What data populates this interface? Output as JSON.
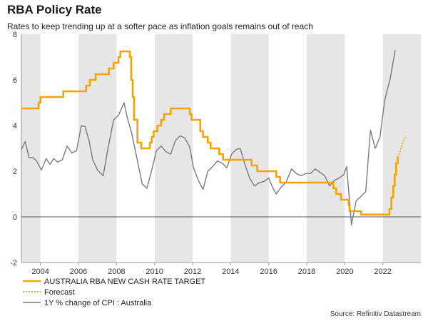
{
  "chart_data": {
    "type": "line",
    "title": "RBA Policy Rate",
    "subtitle": "Rates to keep trending up at a softer pace as inflation goals remains out of reach",
    "xlabel": "",
    "ylabel": "",
    "xlim": [
      2003.0,
      2024.0
    ],
    "ylim": [
      -2,
      8
    ],
    "x_ticks": [
      2004,
      2006,
      2008,
      2010,
      2012,
      2014,
      2016,
      2018,
      2020,
      2022
    ],
    "y_ticks": [
      -2,
      0,
      2,
      4,
      6,
      8
    ],
    "shaded_bands": [
      [
        2003.0,
        2004.0
      ],
      [
        2006.0,
        2008.0
      ],
      [
        2010.0,
        2012.0
      ],
      [
        2014.0,
        2016.0
      ],
      [
        2018.0,
        2020.0
      ],
      [
        2022.0,
        2024.0
      ]
    ],
    "legend_position": "bottom-left",
    "source": "Source: Refinitiv Datastream",
    "series": [
      {
        "name": "AUSTRALIA RBA NEW CASH RATE TARGET",
        "color": "#f5a300",
        "style": "step",
        "points": [
          [
            2003.0,
            4.75
          ],
          [
            2003.9,
            4.75
          ],
          [
            2003.9,
            5.0
          ],
          [
            2004.0,
            5.0
          ],
          [
            2004.0,
            5.25
          ],
          [
            2005.2,
            5.25
          ],
          [
            2005.2,
            5.5
          ],
          [
            2006.4,
            5.5
          ],
          [
            2006.4,
            5.75
          ],
          [
            2006.6,
            5.75
          ],
          [
            2006.6,
            6.0
          ],
          [
            2006.9,
            6.0
          ],
          [
            2006.9,
            6.25
          ],
          [
            2007.6,
            6.25
          ],
          [
            2007.6,
            6.5
          ],
          [
            2007.85,
            6.5
          ],
          [
            2007.85,
            6.75
          ],
          [
            2008.1,
            6.75
          ],
          [
            2008.1,
            7.0
          ],
          [
            2008.2,
            7.0
          ],
          [
            2008.2,
            7.25
          ],
          [
            2008.7,
            7.25
          ],
          [
            2008.7,
            7.0
          ],
          [
            2008.77,
            7.0
          ],
          [
            2008.77,
            6.0
          ],
          [
            2008.85,
            6.0
          ],
          [
            2008.85,
            5.25
          ],
          [
            2008.92,
            5.25
          ],
          [
            2008.92,
            4.25
          ],
          [
            2009.1,
            4.25
          ],
          [
            2009.1,
            3.25
          ],
          [
            2009.3,
            3.25
          ],
          [
            2009.3,
            3.0
          ],
          [
            2009.75,
            3.0
          ],
          [
            2009.75,
            3.25
          ],
          [
            2009.85,
            3.25
          ],
          [
            2009.85,
            3.5
          ],
          [
            2009.95,
            3.5
          ],
          [
            2009.95,
            3.75
          ],
          [
            2010.15,
            3.75
          ],
          [
            2010.15,
            4.0
          ],
          [
            2010.35,
            4.0
          ],
          [
            2010.35,
            4.25
          ],
          [
            2010.5,
            4.25
          ],
          [
            2010.5,
            4.5
          ],
          [
            2010.85,
            4.5
          ],
          [
            2010.85,
            4.75
          ],
          [
            2011.85,
            4.75
          ],
          [
            2011.85,
            4.5
          ],
          [
            2011.95,
            4.5
          ],
          [
            2011.95,
            4.25
          ],
          [
            2012.4,
            4.25
          ],
          [
            2012.4,
            3.75
          ],
          [
            2012.55,
            3.75
          ],
          [
            2012.55,
            3.5
          ],
          [
            2012.8,
            3.5
          ],
          [
            2012.8,
            3.25
          ],
          [
            2012.95,
            3.25
          ],
          [
            2012.95,
            3.0
          ],
          [
            2013.4,
            3.0
          ],
          [
            2013.4,
            2.75
          ],
          [
            2013.6,
            2.75
          ],
          [
            2013.6,
            2.5
          ],
          [
            2015.1,
            2.5
          ],
          [
            2015.1,
            2.25
          ],
          [
            2015.4,
            2.25
          ],
          [
            2015.4,
            2.0
          ],
          [
            2016.4,
            2.0
          ],
          [
            2016.4,
            1.75
          ],
          [
            2016.6,
            1.75
          ],
          [
            2016.6,
            1.5
          ],
          [
            2019.4,
            1.5
          ],
          [
            2019.4,
            1.25
          ],
          [
            2019.55,
            1.25
          ],
          [
            2019.55,
            1.0
          ],
          [
            2019.8,
            1.0
          ],
          [
            2019.8,
            0.75
          ],
          [
            2020.2,
            0.75
          ],
          [
            2020.2,
            0.5
          ],
          [
            2020.25,
            0.5
          ],
          [
            2020.25,
            0.25
          ],
          [
            2020.85,
            0.25
          ],
          [
            2020.85,
            0.1
          ],
          [
            2022.35,
            0.1
          ],
          [
            2022.35,
            0.35
          ],
          [
            2022.45,
            0.35
          ],
          [
            2022.45,
            0.85
          ],
          [
            2022.55,
            0.85
          ],
          [
            2022.55,
            1.35
          ],
          [
            2022.62,
            1.35
          ],
          [
            2022.62,
            1.85
          ],
          [
            2022.7,
            1.85
          ],
          [
            2022.7,
            2.35
          ],
          [
            2022.78,
            2.35
          ],
          [
            2022.78,
            2.6
          ]
        ]
      },
      {
        "name": "Forecast",
        "color": "#f5a300",
        "style": "dotted",
        "points": [
          [
            2022.78,
            2.6
          ],
          [
            2022.9,
            2.85
          ],
          [
            2023.0,
            3.1
          ],
          [
            2023.1,
            3.35
          ],
          [
            2023.2,
            3.55
          ]
        ]
      },
      {
        "name": "1Y % change of CPI : Australia",
        "color": "#7a7a7a",
        "style": "line",
        "points": [
          [
            2003.0,
            2.95
          ],
          [
            2003.2,
            3.3
          ],
          [
            2003.4,
            2.6
          ],
          [
            2003.6,
            2.6
          ],
          [
            2003.8,
            2.45
          ],
          [
            2004.05,
            2.05
          ],
          [
            2004.3,
            2.55
          ],
          [
            2004.5,
            2.3
          ],
          [
            2004.7,
            2.55
          ],
          [
            2004.9,
            2.4
          ],
          [
            2005.15,
            2.5
          ],
          [
            2005.4,
            3.1
          ],
          [
            2005.65,
            2.8
          ],
          [
            2005.9,
            2.9
          ],
          [
            2006.15,
            4.0
          ],
          [
            2006.35,
            3.95
          ],
          [
            2006.55,
            3.35
          ],
          [
            2006.75,
            2.5
          ],
          [
            2007.0,
            2.05
          ],
          [
            2007.3,
            1.8
          ],
          [
            2007.55,
            3.0
          ],
          [
            2007.85,
            4.25
          ],
          [
            2008.1,
            4.45
          ],
          [
            2008.4,
            5.0
          ],
          [
            2008.55,
            4.4
          ],
          [
            2008.8,
            3.65
          ],
          [
            2009.1,
            2.45
          ],
          [
            2009.35,
            1.45
          ],
          [
            2009.6,
            1.25
          ],
          [
            2009.85,
            2.05
          ],
          [
            2010.1,
            2.9
          ],
          [
            2010.35,
            3.1
          ],
          [
            2010.6,
            2.85
          ],
          [
            2010.85,
            2.75
          ],
          [
            2011.1,
            3.35
          ],
          [
            2011.35,
            3.55
          ],
          [
            2011.6,
            3.45
          ],
          [
            2011.85,
            3.05
          ],
          [
            2012.05,
            2.15
          ],
          [
            2012.3,
            1.6
          ],
          [
            2012.55,
            1.2
          ],
          [
            2012.8,
            2.0
          ],
          [
            2013.05,
            2.2
          ],
          [
            2013.3,
            2.45
          ],
          [
            2013.55,
            2.35
          ],
          [
            2013.8,
            2.15
          ],
          [
            2014.05,
            2.75
          ],
          [
            2014.3,
            2.95
          ],
          [
            2014.5,
            3.0
          ],
          [
            2014.75,
            2.3
          ],
          [
            2015.0,
            1.7
          ],
          [
            2015.25,
            1.35
          ],
          [
            2015.5,
            1.5
          ],
          [
            2015.75,
            1.55
          ],
          [
            2016.0,
            1.7
          ],
          [
            2016.2,
            1.3
          ],
          [
            2016.4,
            1.0
          ],
          [
            2016.65,
            1.3
          ],
          [
            2016.9,
            1.5
          ],
          [
            2017.2,
            2.1
          ],
          [
            2017.45,
            1.9
          ],
          [
            2017.7,
            1.8
          ],
          [
            2017.95,
            1.9
          ],
          [
            2018.2,
            1.9
          ],
          [
            2018.45,
            2.1
          ],
          [
            2018.7,
            1.95
          ],
          [
            2018.95,
            1.8
          ],
          [
            2019.2,
            1.35
          ],
          [
            2019.45,
            1.6
          ],
          [
            2019.7,
            1.7
          ],
          [
            2019.95,
            1.85
          ],
          [
            2020.1,
            2.2
          ],
          [
            2020.35,
            -0.35
          ],
          [
            2020.6,
            0.7
          ],
          [
            2020.85,
            0.9
          ],
          [
            2021.1,
            1.1
          ],
          [
            2021.35,
            3.8
          ],
          [
            2021.6,
            3.0
          ],
          [
            2021.85,
            3.5
          ],
          [
            2022.1,
            5.1
          ],
          [
            2022.4,
            6.1
          ],
          [
            2022.65,
            7.3
          ]
        ]
      }
    ]
  }
}
